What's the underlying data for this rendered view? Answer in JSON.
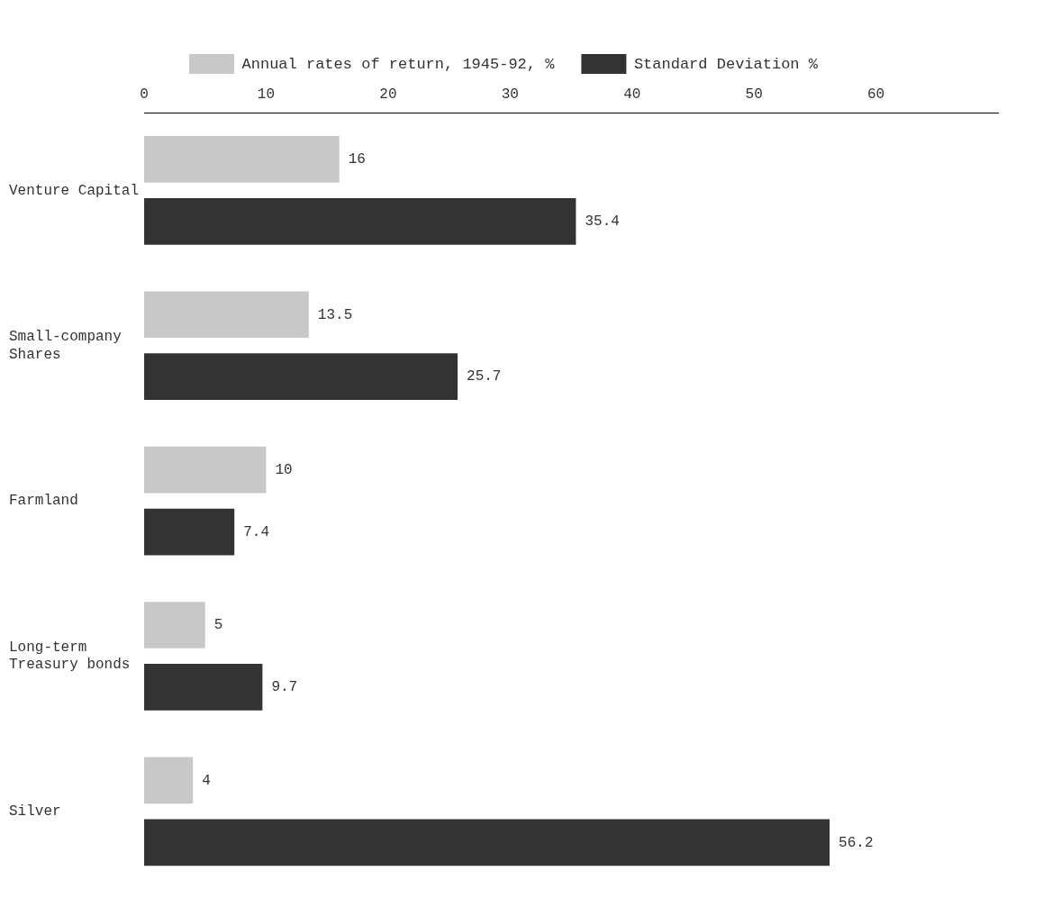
{
  "chart_data": {
    "type": "bar",
    "orientation": "horizontal",
    "categories": [
      "Venture Capital",
      "Small-company Shares",
      "Farmland",
      "Long-term Treasury bonds",
      "Silver"
    ],
    "series": [
      {
        "name": "Annual rates of return, 1945-92, %",
        "color": "#c8c8c8",
        "values": [
          16,
          13.5,
          10,
          5,
          4
        ]
      },
      {
        "name": "Standard Deviation %",
        "color": "#333333",
        "values": [
          35.4,
          25.7,
          7.4,
          9.7,
          56.2
        ]
      }
    ],
    "xlim": [
      0,
      70
    ],
    "xticks": [
      0,
      10,
      20,
      30,
      40,
      50,
      60
    ],
    "grid": false,
    "legend": "top",
    "data_labels": true
  }
}
